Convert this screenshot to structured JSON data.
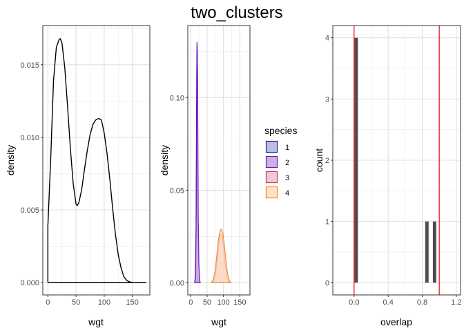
{
  "title": "two_clusters",
  "chart_data": [
    {
      "type": "line",
      "xlabel": "wgt",
      "ylabel": "density",
      "xlim": [
        -9,
        181
      ],
      "ylim": [
        -0.00085,
        0.0177
      ],
      "x_ticks": [
        0,
        50,
        100,
        150
      ],
      "x_tick_labels": [
        "0",
        "50",
        "100",
        "150"
      ],
      "y_ticks": [
        0,
        0.005,
        0.01,
        0.015
      ],
      "y_tick_labels": [
        "0.000",
        "0.005",
        "0.010",
        "0.015"
      ],
      "grid": true,
      "line_color": "#000000",
      "x": [
        0,
        0,
        5,
        10,
        15,
        20,
        22,
        25,
        30,
        35,
        40,
        45,
        50,
        52,
        55,
        60,
        65,
        70,
        75,
        80,
        85,
        90,
        93,
        95,
        100,
        105,
        110,
        115,
        120,
        125,
        130,
        135,
        140,
        145,
        150,
        160,
        174,
        174,
        0
      ],
      "y": [
        0,
        0.0039,
        0.0085,
        0.0139,
        0.0162,
        0.01675,
        0.0168,
        0.0165,
        0.0148,
        0.0121,
        0.0092,
        0.0068,
        0.0054,
        0.0053,
        0.0055,
        0.0064,
        0.0078,
        0.0091,
        0.0102,
        0.0109,
        0.0112,
        0.0113,
        0.01125,
        0.0112,
        0.0103,
        0.0089,
        0.0071,
        0.0051,
        0.0033,
        0.0019,
        0.001,
        0.0004,
        0.00015,
        5e-05,
        1e-05,
        0,
        0,
        0,
        0
      ]
    },
    {
      "type": "area",
      "xlabel": "wgt",
      "ylabel": "density",
      "xlim": [
        -9,
        181
      ],
      "ylim": [
        -0.0066,
        0.139
      ],
      "x_ticks": [
        0,
        50,
        100,
        150
      ],
      "x_tick_labels": [
        "0",
        "50",
        "100",
        "150"
      ],
      "y_ticks": [
        0,
        0.05,
        0.1
      ],
      "y_tick_labels": [
        "0.00",
        "0.05",
        "0.10"
      ],
      "grid": true,
      "legend_title": "species",
      "legend_position": "right",
      "series": [
        {
          "name": "1",
          "fill": "#b4b4dc",
          "stroke": "#1f1f9e",
          "x": [
            12,
            14,
            16,
            17,
            18,
            19,
            20,
            21,
            22,
            24,
            26,
            28
          ],
          "y": [
            0,
            0.004,
            0.03,
            0.07,
            0.11,
            0.13,
            0.125,
            0.085,
            0.04,
            0.012,
            0.002,
            0
          ]
        },
        {
          "name": "2",
          "fill": "#c7a6de",
          "stroke": "#7d12c4",
          "x": [
            13,
            15,
            17,
            18,
            19,
            20,
            21,
            22,
            23,
            25,
            27,
            29
          ],
          "y": [
            0,
            0.005,
            0.04,
            0.085,
            0.118,
            0.126,
            0.112,
            0.075,
            0.035,
            0.01,
            0.002,
            0
          ]
        },
        {
          "name": "3",
          "fill": "#eec3d0",
          "stroke": "#d12a6b",
          "x": [
            65,
            70,
            75,
            80,
            85,
            90,
            95,
            100,
            105,
            110,
            115,
            120
          ],
          "y": [
            0,
            0.001,
            0.004,
            0.011,
            0.02,
            0.026,
            0.026,
            0.02,
            0.011,
            0.004,
            0.001,
            0
          ]
        },
        {
          "name": "4",
          "fill": "#fddfc2",
          "stroke": "#f28c28",
          "x": [
            63,
            68,
            73,
            78,
            83,
            88,
            93,
            98,
            103,
            108,
            113,
            118,
            123
          ],
          "y": [
            0,
            0.0015,
            0.005,
            0.012,
            0.021,
            0.027,
            0.029,
            0.027,
            0.02,
            0.011,
            0.0045,
            0.0012,
            0
          ]
        }
      ]
    },
    {
      "type": "bar",
      "xlabel": "overlap",
      "ylabel": "count",
      "xlim": [
        -0.25,
        1.25
      ],
      "ylim": [
        -0.2,
        4.2
      ],
      "x_ticks": [
        0,
        0.4,
        0.8,
        1.2
      ],
      "x_tick_labels": [
        "0.0",
        "0.4",
        "0.8",
        "1.2"
      ],
      "y_ticks": [
        0,
        1,
        2,
        3,
        4
      ],
      "y_tick_labels": [
        "0",
        "1",
        "2",
        "3",
        "4"
      ],
      "grid": true,
      "bar_color": "#4d4d4d",
      "bins": [
        {
          "x0": 0.005,
          "x1": 0.045,
          "count": 4
        },
        {
          "x0": 0.835,
          "x1": 0.875,
          "count": 1
        },
        {
          "x0": 0.925,
          "x1": 0.965,
          "count": 1
        }
      ],
      "vlines": [
        0,
        1
      ],
      "vline_color": "#ff0000"
    }
  ]
}
